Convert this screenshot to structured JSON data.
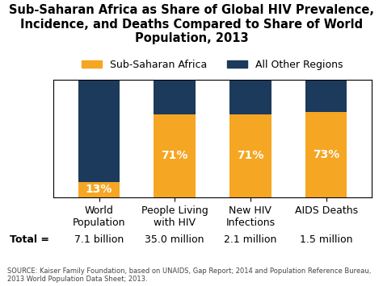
{
  "chart_data": {
    "type": "bar",
    "stacked": true,
    "title": "Sub-Saharan Africa as Share of Global HIV Prevalence, Incidence, and Deaths Compared to Share of World Population, 2013",
    "categories": [
      "World Population",
      "People Living with HIV",
      "New HIV Infections",
      "AIDS Deaths"
    ],
    "series": [
      {
        "name": "Sub-Saharan Africa",
        "color": "#F5A623",
        "values": [
          13,
          71,
          71,
          73
        ],
        "value_labels": [
          "13%",
          "71%",
          "71%",
          "73%"
        ]
      },
      {
        "name": "All Other Regions",
        "color": "#1C3A5B",
        "values": [
          87,
          29,
          29,
          27
        ]
      }
    ],
    "data_labels": true,
    "totals_label": "Total =",
    "totals": [
      "7.1 billion",
      "35.0 million",
      "2.1 million",
      "1.5 million"
    ],
    "source": "SOURCE: Kaiser Family Foundation, based on UNAIDS, Gap Report; 2014 and Population Reference Bureau, 2013 World Population Data Sheet; 2013.",
    "ylim": [
      0,
      100
    ],
    "yticks": [],
    "tick_labels": "x",
    "legend": "lower center",
    "grid": false
  }
}
